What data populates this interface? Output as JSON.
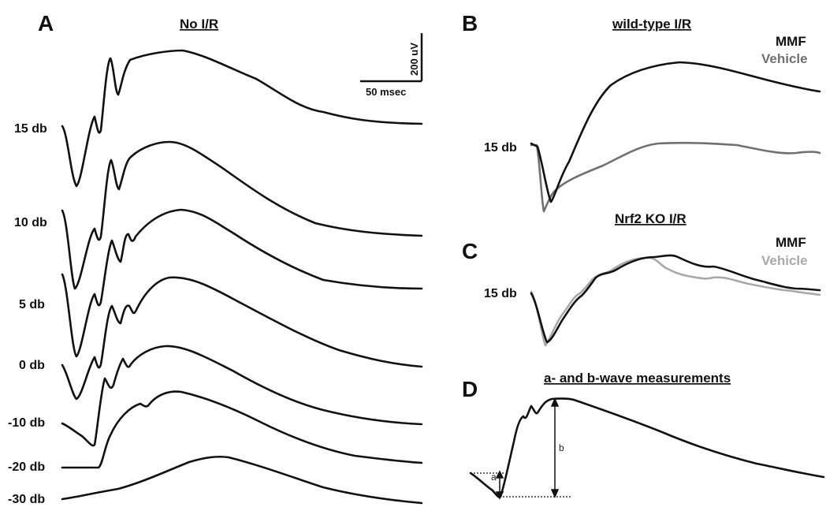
{
  "panels": {
    "A": {
      "letter": "A",
      "title": "No I/R",
      "scale_y": "200 uV",
      "scale_x": "50 msec"
    },
    "B": {
      "letter": "B",
      "title": "wild-type I/R",
      "legend_1": "MMF",
      "legend_2": "Vehicle",
      "db": "15 db"
    },
    "C": {
      "letter": "C",
      "title": "Nrf2 KO I/R",
      "legend_1": "MMF",
      "legend_2": "Vehicle",
      "db": "15 db"
    },
    "D": {
      "letter": "D",
      "title": "a- and b-wave measurements",
      "a_label": "a",
      "b_label": "b"
    }
  },
  "intensity_labels": [
    "15 db",
    "10 db",
    "5 db",
    "0 db",
    "-10 db",
    "-20 db",
    "-30 db"
  ],
  "colors": {
    "mmf": "#111111",
    "vehicle_b": "#707070",
    "vehicle_c": "#a8a8a8"
  }
}
